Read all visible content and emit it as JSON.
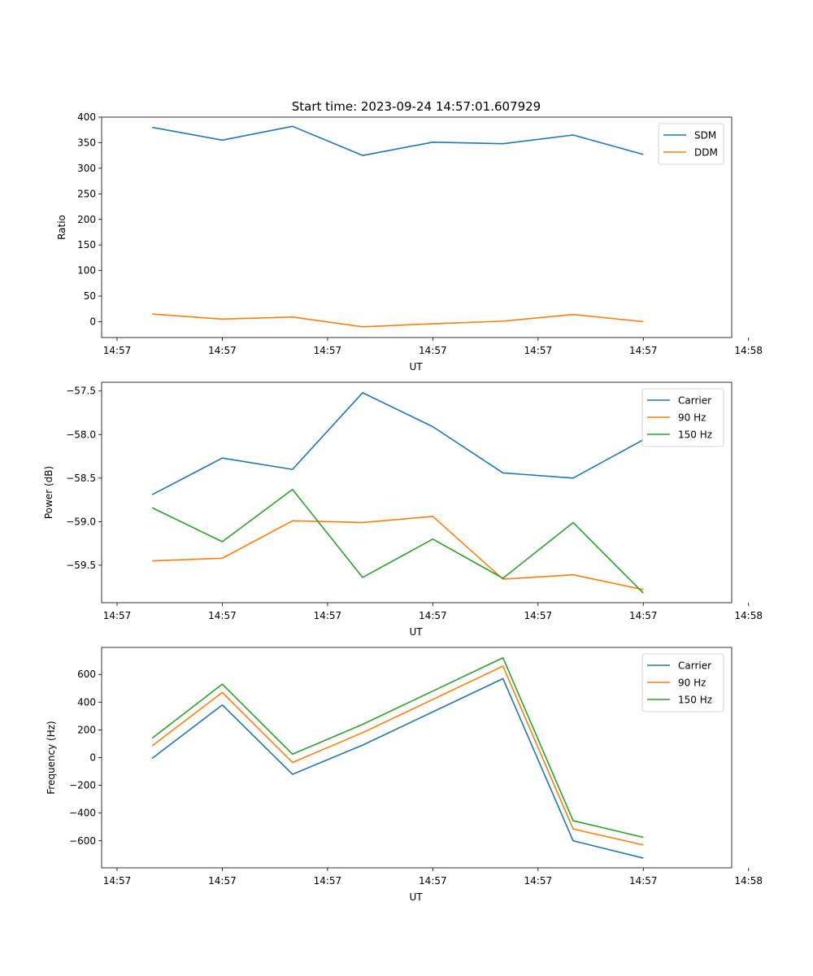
{
  "figure": {
    "title": "Start time: 2023-09-24 14:57:01.607929"
  },
  "chart_data": [
    {
      "type": "line",
      "title": "Start time: 2023-09-24 14:57:01.607929",
      "xlabel": "UT",
      "ylabel": "Ratio",
      "x": [
        1,
        2,
        3,
        4,
        5,
        6,
        7,
        8
      ],
      "xlim": [
        0.28,
        9.26
      ],
      "xticks": [
        0.5,
        2.0,
        3.5,
        5.0,
        6.5,
        8.0,
        9.5
      ],
      "xtick_labels": [
        "14:57",
        "14:57",
        "14:57",
        "14:57",
        "14:57",
        "14:57",
        "14:58"
      ],
      "ylim": [
        -31,
        400
      ],
      "yticks": [
        0,
        50,
        100,
        150,
        200,
        250,
        300,
        350,
        400
      ],
      "legend": "top-right",
      "series": [
        {
          "name": "SDM",
          "color": "#1f77b4",
          "values": [
            380,
            355,
            382,
            325,
            351,
            348,
            365,
            327
          ]
        },
        {
          "name": "DDM",
          "color": "#ff7f0e",
          "values": [
            15,
            5,
            9,
            -10,
            -4,
            1,
            14,
            0
          ]
        }
      ]
    },
    {
      "type": "line",
      "title": "",
      "xlabel": "UT",
      "ylabel": "Power (dB)",
      "x": [
        1,
        2,
        3,
        4,
        5,
        6,
        7,
        8
      ],
      "xlim": [
        0.28,
        9.26
      ],
      "xticks": [
        0.5,
        2.0,
        3.5,
        5.0,
        6.5,
        8.0,
        9.5
      ],
      "xtick_labels": [
        "14:57",
        "14:57",
        "14:57",
        "14:57",
        "14:57",
        "14:57",
        "14:58"
      ],
      "ylim": [
        -59.93,
        -57.4
      ],
      "yticks": [
        -57.5,
        -58.0,
        -58.5,
        -59.0,
        -59.5
      ],
      "ytick_labels": [
        "−57.5",
        "−58.0",
        "−58.5",
        "−59.0",
        "−59.5"
      ],
      "legend": "top-right",
      "series": [
        {
          "name": "Carrier",
          "color": "#1f77b4",
          "values": [
            -58.69,
            -58.27,
            -58.4,
            -57.52,
            -57.91,
            -58.44,
            -58.5,
            -58.06
          ]
        },
        {
          "name": "90 Hz",
          "color": "#ff7f0e",
          "values": [
            -59.45,
            -59.42,
            -58.99,
            -59.01,
            -58.94,
            -59.66,
            -59.61,
            -59.78
          ]
        },
        {
          "name": "150 Hz",
          "color": "#2ca02c",
          "values": [
            -58.84,
            -59.23,
            -58.63,
            -59.64,
            -59.2,
            -59.65,
            -59.01,
            -59.82
          ]
        }
      ]
    },
    {
      "type": "line",
      "title": "",
      "xlabel": "UT",
      "ylabel": "Frequency (Hz)",
      "x": [
        1,
        2,
        3,
        4,
        5,
        6,
        7,
        8
      ],
      "xlim": [
        0.28,
        9.26
      ],
      "xticks": [
        0.5,
        2.0,
        3.5,
        5.0,
        6.5,
        8.0,
        9.5
      ],
      "xtick_labels": [
        "14:57",
        "14:57",
        "14:57",
        "14:57",
        "14:57",
        "14:57",
        "14:58"
      ],
      "ylim": [
        -795,
        795
      ],
      "yticks": [
        600,
        400,
        200,
        0,
        -200,
        -400,
        -600
      ],
      "ytick_labels": [
        "600",
        "400",
        "200",
        "0",
        "−200",
        "−400",
        "−600"
      ],
      "legend": "top-right",
      "series": [
        {
          "name": "Carrier",
          "color": "#1f77b4",
          "values": [
            -5,
            380,
            -120,
            90,
            330,
            570,
            -600,
            -725
          ]
        },
        {
          "name": "90 Hz",
          "color": "#ff7f0e",
          "values": [
            85,
            470,
            -35,
            180,
            420,
            660,
            -515,
            -630
          ]
        },
        {
          "name": "150 Hz",
          "color": "#2ca02c",
          "values": [
            140,
            530,
            25,
            240,
            480,
            720,
            -455,
            -575
          ]
        }
      ]
    }
  ]
}
